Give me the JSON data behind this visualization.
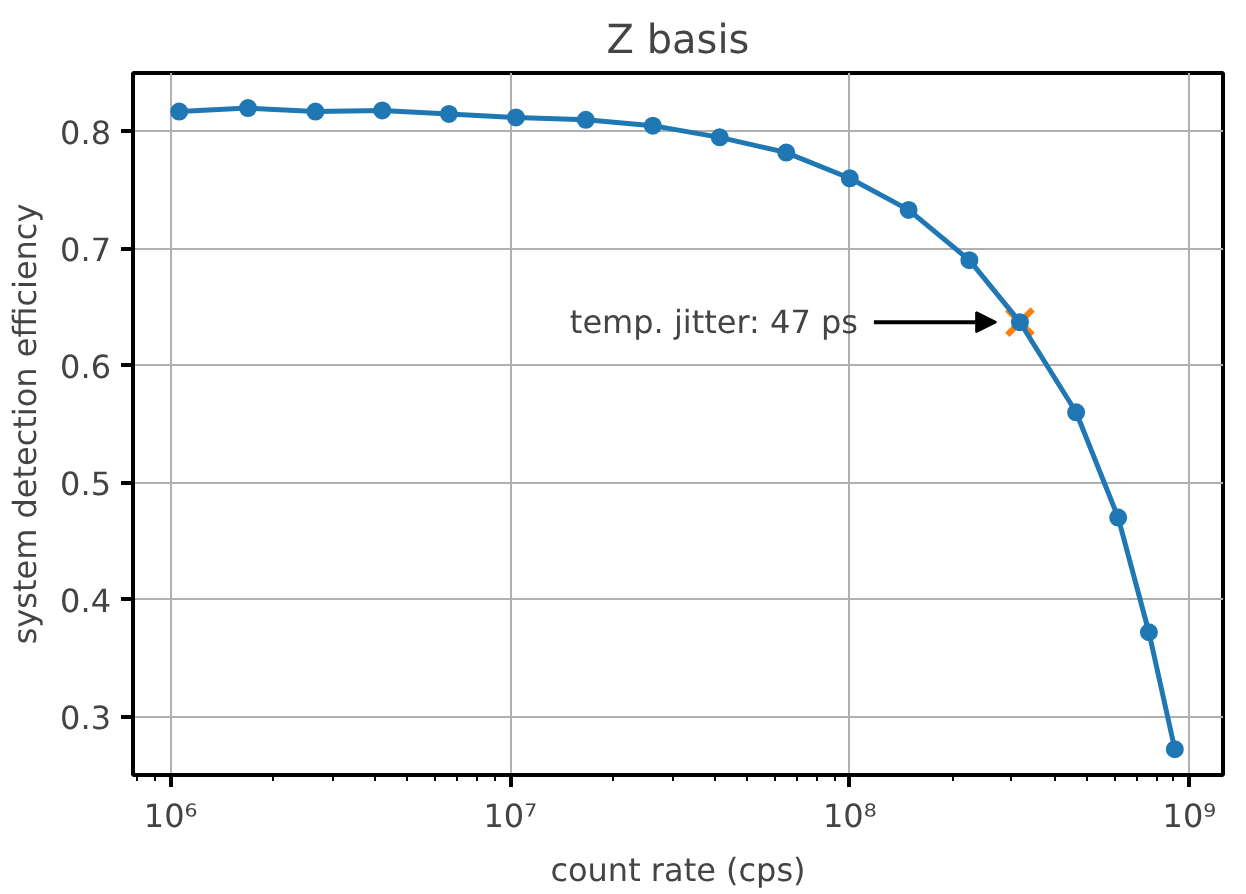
{
  "chart_data": {
    "type": "line",
    "title": "Z basis",
    "xlabel": "count rate (cps)",
    "ylabel": "system detection efficiency",
    "log": "x",
    "grid": true,
    "marker": "circle",
    "line_style": "solid",
    "xlim": [
      775000,
      1256000000
    ],
    "ylim": [
      0.25,
      0.85
    ],
    "xticks": [
      {
        "value": 1000000,
        "label": "10⁶"
      },
      {
        "value": 10000000,
        "label": "10⁷"
      },
      {
        "value": 100000000,
        "label": "10⁸"
      },
      {
        "value": 1000000000,
        "label": "10⁹"
      }
    ],
    "yticks": [
      0.3,
      0.4,
      0.5,
      0.6,
      0.7,
      0.8
    ],
    "series": [
      {
        "color": "#1f77b4",
        "x": [
          1060000,
          1690000,
          2670000,
          4200000,
          6600000,
          10400000,
          16700000,
          26300000,
          41400000,
          65000000,
          100000000,
          149000000,
          225000000,
          317000000,
          464000000,
          617000000,
          760000000,
          906000000
        ],
        "values": [
          0.817,
          0.82,
          0.817,
          0.818,
          0.815,
          0.812,
          0.81,
          0.805,
          0.795,
          0.782,
          0.76,
          0.733,
          0.69,
          0.637,
          0.56,
          0.47,
          0.372,
          0.272
        ]
      },
      {
        "type": "scatter",
        "marker": "cross",
        "color": "#ff7f0e",
        "x": [
          317000000
        ],
        "values": [
          0.637
        ]
      }
    ],
    "annotations": [
      "temp. jitter: 47 ps"
    ]
  }
}
